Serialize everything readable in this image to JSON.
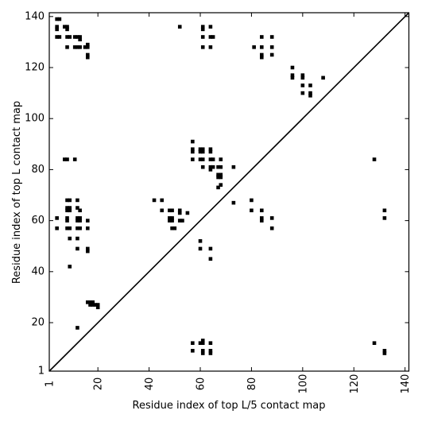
{
  "chart_data": {
    "type": "scatter",
    "title": "",
    "xlabel": "Residue index of top L/5 contact map",
    "ylabel": "Residue index of top L contact map",
    "xlim": [
      1,
      141.5
    ],
    "ylim": [
      1,
      141.5
    ],
    "xticks": [
      1,
      20,
      40,
      60,
      80,
      100,
      120,
      140
    ],
    "yticks": [
      1,
      20,
      40,
      60,
      80,
      100,
      120,
      140
    ],
    "xtick_labels": [
      "1",
      "20",
      "40",
      "60",
      "80",
      "100",
      "120",
      "140"
    ],
    "ytick_labels": [
      "1",
      "20",
      "40",
      "60",
      "80",
      "100",
      "120",
      "140"
    ],
    "diagonal": true,
    "grid": false,
    "marker": "square",
    "marker_color": "#000000",
    "line_color": "#000000",
    "series": [
      {
        "values": [
          [
            4,
            139
          ],
          [
            5,
            139
          ],
          [
            4,
            136
          ],
          [
            4,
            135
          ],
          [
            7,
            136
          ],
          [
            8,
            136
          ],
          [
            8,
            135
          ],
          [
            4,
            132
          ],
          [
            5,
            132
          ],
          [
            8,
            132
          ],
          [
            9,
            132
          ],
          [
            11,
            132
          ],
          [
            12,
            132
          ],
          [
            13,
            132
          ],
          [
            13,
            131
          ],
          [
            8,
            128
          ],
          [
            11,
            128
          ],
          [
            12,
            128
          ],
          [
            13,
            128
          ],
          [
            15,
            128
          ],
          [
            16,
            128
          ],
          [
            16,
            129
          ],
          [
            16,
            125
          ],
          [
            16,
            124
          ],
          [
            52,
            136
          ],
          [
            61,
            136
          ],
          [
            61,
            135
          ],
          [
            64,
            136
          ],
          [
            61,
            132
          ],
          [
            64,
            132
          ],
          [
            65,
            132
          ],
          [
            61,
            128
          ],
          [
            64,
            128
          ],
          [
            84,
            132
          ],
          [
            88,
            132
          ],
          [
            81,
            128
          ],
          [
            84,
            128
          ],
          [
            88,
            128
          ],
          [
            84,
            125
          ],
          [
            84,
            124
          ],
          [
            88,
            125
          ],
          [
            96,
            120
          ],
          [
            96,
            117
          ],
          [
            96,
            116
          ],
          [
            100,
            117
          ],
          [
            100,
            116
          ],
          [
            100,
            113
          ],
          [
            103,
            113
          ],
          [
            100,
            110
          ],
          [
            103,
            110
          ],
          [
            103,
            109
          ],
          [
            108,
            116
          ],
          [
            57,
            91
          ],
          [
            57,
            88
          ],
          [
            57,
            87
          ],
          [
            60,
            88
          ],
          [
            61,
            88
          ],
          [
            60,
            87
          ],
          [
            61,
            87
          ],
          [
            64,
            88
          ],
          [
            64,
            87
          ],
          [
            57,
            84
          ],
          [
            60,
            84
          ],
          [
            61,
            84
          ],
          [
            64,
            84
          ],
          [
            65,
            84
          ],
          [
            68,
            84
          ],
          [
            61,
            81
          ],
          [
            64,
            81
          ],
          [
            65,
            81
          ],
          [
            64,
            80
          ],
          [
            67,
            81
          ],
          [
            68,
            81
          ],
          [
            73,
            81
          ],
          [
            67,
            78
          ],
          [
            68,
            78
          ],
          [
            68,
            77
          ],
          [
            67,
            77
          ],
          [
            68,
            74
          ],
          [
            67,
            73
          ],
          [
            7,
            84
          ],
          [
            8,
            84
          ],
          [
            11,
            84
          ],
          [
            128,
            84
          ],
          [
            8,
            68
          ],
          [
            9,
            68
          ],
          [
            12,
            68
          ],
          [
            8,
            65
          ],
          [
            9,
            65
          ],
          [
            12,
            65
          ],
          [
            8,
            64
          ],
          [
            9,
            64
          ],
          [
            13,
            64
          ],
          [
            4,
            61
          ],
          [
            8,
            61
          ],
          [
            12,
            61
          ],
          [
            13,
            61
          ],
          [
            8,
            60
          ],
          [
            12,
            60
          ],
          [
            13,
            60
          ],
          [
            16,
            60
          ],
          [
            4,
            57
          ],
          [
            8,
            57
          ],
          [
            9,
            57
          ],
          [
            12,
            57
          ],
          [
            13,
            57
          ],
          [
            16,
            57
          ],
          [
            9,
            53
          ],
          [
            12,
            53
          ],
          [
            12,
            49
          ],
          [
            16,
            49
          ],
          [
            16,
            48
          ],
          [
            9,
            42
          ],
          [
            42,
            68
          ],
          [
            45,
            68
          ],
          [
            45,
            64
          ],
          [
            48,
            64
          ],
          [
            49,
            64
          ],
          [
            52,
            64
          ],
          [
            52,
            63
          ],
          [
            55,
            63
          ],
          [
            48,
            61
          ],
          [
            49,
            61
          ],
          [
            48,
            60
          ],
          [
            49,
            60
          ],
          [
            52,
            60
          ],
          [
            53,
            60
          ],
          [
            49,
            57
          ],
          [
            50,
            57
          ],
          [
            60,
            52
          ],
          [
            60,
            49
          ],
          [
            64,
            49
          ],
          [
            64,
            45
          ],
          [
            73,
            67
          ],
          [
            80,
            68
          ],
          [
            80,
            64
          ],
          [
            84,
            64
          ],
          [
            84,
            61
          ],
          [
            84,
            60
          ],
          [
            88,
            61
          ],
          [
            88,
            57
          ],
          [
            132,
            64
          ],
          [
            132,
            61
          ],
          [
            16,
            28
          ],
          [
            17,
            28
          ],
          [
            18,
            28
          ],
          [
            17,
            27
          ],
          [
            18,
            27
          ],
          [
            19,
            27
          ],
          [
            20,
            27
          ],
          [
            20,
            26
          ],
          [
            12,
            18
          ],
          [
            57,
            12
          ],
          [
            60,
            12
          ],
          [
            61,
            12
          ],
          [
            61,
            13
          ],
          [
            64,
            12
          ],
          [
            57,
            9
          ],
          [
            61,
            9
          ],
          [
            61,
            8
          ],
          [
            64,
            9
          ],
          [
            64,
            8
          ],
          [
            128,
            12
          ],
          [
            132,
            9
          ],
          [
            132,
            8
          ]
        ]
      }
    ]
  }
}
